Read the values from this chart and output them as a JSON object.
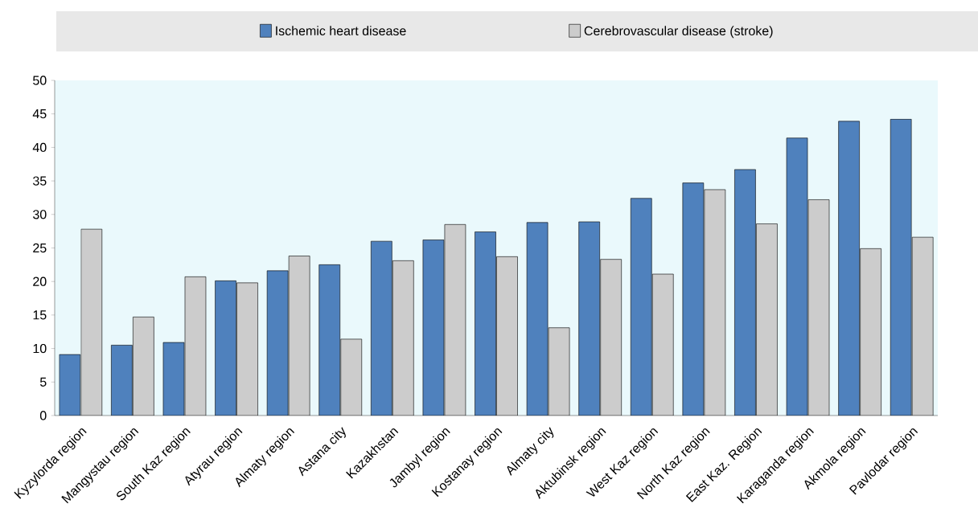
{
  "chart_data": {
    "type": "bar",
    "categories": [
      "Kyzylorda region",
      "Mangystau region",
      "South Kaz region",
      "Atyrau region",
      "Almaty region",
      "Astana city",
      "Kazakhstan",
      "Jambyl region",
      "Kostanay region",
      "Almaty city",
      "Aktubinsk region",
      "West Kaz region",
      "North Kaz region",
      "East Kaz. Region",
      "Karaganda region",
      "Akmola region",
      "Pavlodar region"
    ],
    "series": [
      {
        "name": "Ischemic heart disease",
        "color": "#4f81bd",
        "values": [
          9.1,
          10.5,
          10.9,
          20.1,
          21.6,
          22.5,
          26.0,
          26.2,
          27.4,
          28.8,
          28.9,
          32.4,
          34.7,
          36.7,
          41.4,
          43.9,
          44.2
        ]
      },
      {
        "name": "Cerebrovascular disease (stroke)",
        "color": "#cccccc",
        "values": [
          27.8,
          14.7,
          20.7,
          19.8,
          23.8,
          11.4,
          23.1,
          28.5,
          23.7,
          13.1,
          23.3,
          21.1,
          33.7,
          28.6,
          32.2,
          24.9,
          26.6
        ]
      }
    ],
    "ylim": [
      0,
      50
    ],
    "yticks": [
      0,
      5,
      10,
      15,
      20,
      25,
      30,
      35,
      40,
      45,
      50
    ],
    "grid": false,
    "legend": "top"
  }
}
